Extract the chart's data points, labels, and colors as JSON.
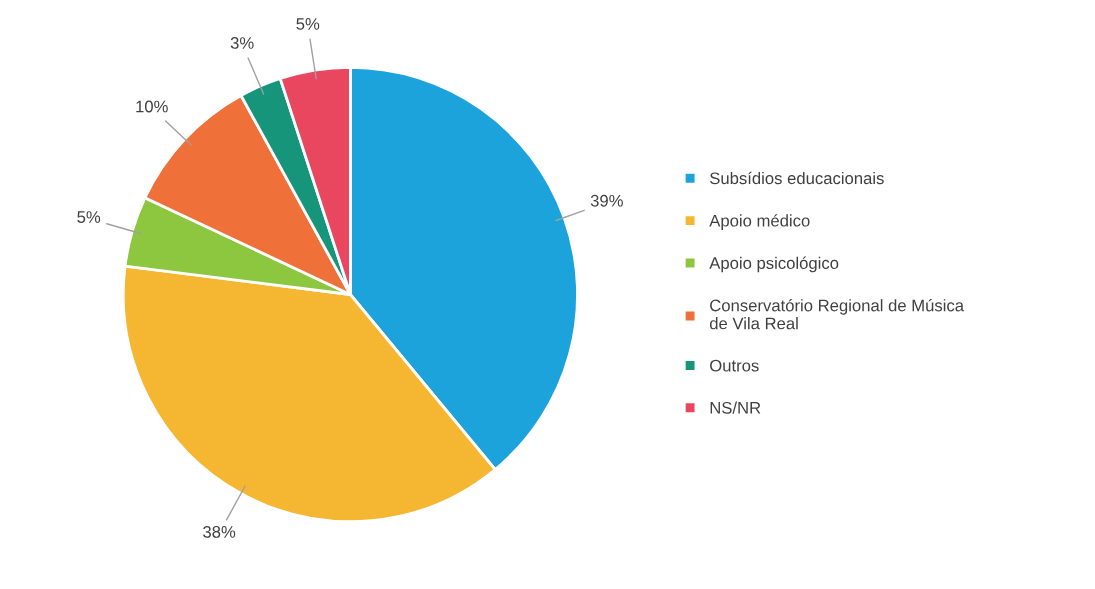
{
  "chart_data": {
    "type": "pie",
    "categories": [
      "Subsídios educacionais",
      "Apoio médico",
      "Apoio psicológico",
      "Conservatório Regional de Música\nde Vila Real",
      "Outros",
      "NS/NR"
    ],
    "values": [
      39,
      38,
      5,
      10,
      3,
      5
    ],
    "value_labels": [
      "39%",
      "38%",
      "5%",
      "10%",
      "3%",
      "5%"
    ],
    "colors": [
      "#1ca3dc",
      "#f5b731",
      "#8dc63f",
      "#f0703a",
      "#16957a",
      "#e8475f"
    ],
    "legend": "right"
  }
}
